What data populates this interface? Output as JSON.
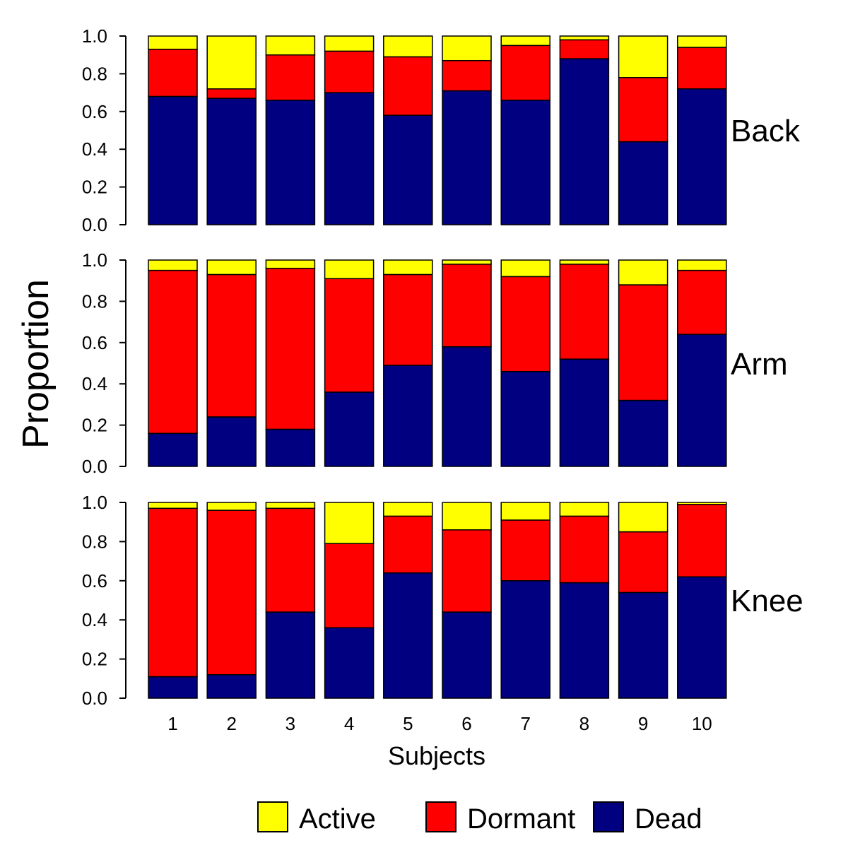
{
  "chart_data": {
    "type": "bar",
    "stacked": true,
    "ylabel": "Proportion",
    "xlabel": "Subjects",
    "ylim": [
      0,
      1
    ],
    "yticks": [
      "0.0",
      "0.2",
      "0.4",
      "0.6",
      "0.8",
      "1.0"
    ],
    "categories": [
      "1",
      "2",
      "3",
      "4",
      "5",
      "6",
      "7",
      "8",
      "9",
      "10"
    ],
    "legend": {
      "placement": "bottom",
      "items": [
        {
          "label": "Active",
          "color": "#FFFF00"
        },
        {
          "label": "Dormant",
          "color": "#FF0000"
        },
        {
          "label": "Dead",
          "color": "#000080"
        }
      ]
    },
    "panels": [
      {
        "label": "Back",
        "series": [
          {
            "name": "Dead",
            "color": "#000080",
            "values": [
              0.68,
              0.67,
              0.66,
              0.7,
              0.58,
              0.71,
              0.66,
              0.88,
              0.44,
              0.72
            ]
          },
          {
            "name": "Dormant",
            "color": "#FF0000",
            "values": [
              0.25,
              0.05,
              0.24,
              0.22,
              0.31,
              0.16,
              0.29,
              0.1,
              0.34,
              0.22
            ]
          },
          {
            "name": "Active",
            "color": "#FFFF00",
            "values": [
              0.07,
              0.28,
              0.1,
              0.08,
              0.11,
              0.13,
              0.05,
              0.02,
              0.22,
              0.06
            ]
          }
        ]
      },
      {
        "label": "Arm",
        "series": [
          {
            "name": "Dead",
            "color": "#000080",
            "values": [
              0.16,
              0.24,
              0.18,
              0.36,
              0.49,
              0.58,
              0.46,
              0.52,
              0.32,
              0.64
            ]
          },
          {
            "name": "Dormant",
            "color": "#FF0000",
            "values": [
              0.79,
              0.69,
              0.78,
              0.55,
              0.44,
              0.4,
              0.46,
              0.46,
              0.56,
              0.31
            ]
          },
          {
            "name": "Active",
            "color": "#FFFF00",
            "values": [
              0.05,
              0.07,
              0.04,
              0.09,
              0.07,
              0.02,
              0.08,
              0.02,
              0.12,
              0.05
            ]
          }
        ]
      },
      {
        "label": "Knee",
        "series": [
          {
            "name": "Dead",
            "color": "#000080",
            "values": [
              0.11,
              0.12,
              0.44,
              0.36,
              0.64,
              0.44,
              0.6,
              0.59,
              0.54,
              0.62
            ]
          },
          {
            "name": "Dormant",
            "color": "#FF0000",
            "values": [
              0.86,
              0.84,
              0.53,
              0.43,
              0.29,
              0.42,
              0.31,
              0.34,
              0.31,
              0.37
            ]
          },
          {
            "name": "Active",
            "color": "#FFFF00",
            "values": [
              0.03,
              0.04,
              0.03,
              0.21,
              0.07,
              0.14,
              0.09,
              0.07,
              0.15,
              0.01
            ]
          }
        ]
      }
    ]
  }
}
